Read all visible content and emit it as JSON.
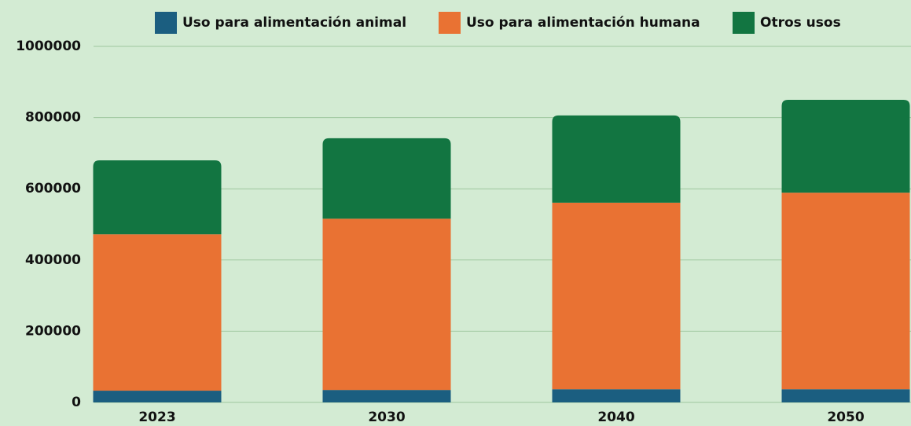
{
  "chart_data": {
    "type": "stacked_bar",
    "categories": [
      "2023",
      "2030",
      "2040",
      "2050"
    ],
    "series": [
      {
        "name": "Uso para alimentación animal",
        "color": "#1b5e80",
        "values": [
          33000,
          35000,
          37000,
          37000
        ]
      },
      {
        "name": "Uso para alimentación humana",
        "color": "#e97233",
        "values": [
          439000,
          481000,
          524000,
          552000
        ]
      },
      {
        "name": "Otros usos",
        "color": "#127541",
        "values": [
          208000,
          226000,
          245000,
          261000
        ]
      }
    ],
    "ylim": [
      0,
      1000000
    ],
    "yticks": [
      0,
      200000,
      400000,
      600000,
      800000,
      1000000
    ],
    "grid": true,
    "legend": "top"
  }
}
